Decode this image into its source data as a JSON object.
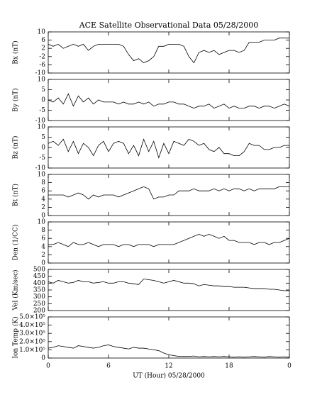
{
  "chart_data": [
    {
      "type": "line",
      "title": "ACE Satellite Observational Data   05/28/2000",
      "ylabel": "Bx (nT)",
      "color": "#000000",
      "x": [
        0,
        0.5,
        1,
        1.5,
        2,
        2.5,
        3,
        3.5,
        4,
        4.5,
        5,
        5.5,
        6,
        6.5,
        7,
        7.5,
        8,
        8.5,
        9,
        9.5,
        10,
        10.5,
        11,
        11.5,
        12,
        12.5,
        13,
        13.5,
        14,
        14.5,
        15,
        15.5,
        16,
        16.5,
        17,
        17.5,
        18,
        18.5,
        19,
        19.5,
        20,
        20.5,
        21,
        21.5,
        22,
        22.5,
        23,
        23.5,
        24
      ],
      "values": [
        4,
        3,
        4,
        2,
        3,
        4,
        3,
        4,
        1,
        3,
        4,
        4,
        4,
        4,
        4,
        3,
        -1,
        -4,
        -3,
        -5,
        -4,
        -2,
        3,
        3,
        4,
        4,
        4,
        3,
        -2,
        -5,
        0,
        1,
        0,
        1,
        -1,
        0,
        1,
        1,
        0,
        1,
        5,
        5,
        5,
        6,
        6,
        6,
        7,
        7,
        7
      ],
      "ylim": [
        -10,
        10
      ],
      "yticks": [
        -10,
        -6,
        -2,
        2,
        6,
        10
      ]
    },
    {
      "type": "line",
      "ylabel": "By (nT)",
      "color": "#000000",
      "x": [
        0,
        0.5,
        1,
        1.5,
        2,
        2.5,
        3,
        3.5,
        4,
        4.5,
        5,
        5.5,
        6,
        6.5,
        7,
        7.5,
        8,
        8.5,
        9,
        9.5,
        10,
        10.5,
        11,
        11.5,
        12,
        12.5,
        13,
        13.5,
        14,
        14.5,
        15,
        15.5,
        16,
        16.5,
        17,
        17.5,
        18,
        18.5,
        19,
        19.5,
        20,
        20.5,
        21,
        21.5,
        22,
        22.5,
        23,
        23.5,
        24
      ],
      "values": [
        0,
        -1,
        1,
        -2,
        3,
        -3,
        2,
        -1,
        1,
        -2,
        0,
        -1,
        -1,
        -1,
        -2,
        -1,
        -2,
        -2,
        -1,
        -2,
        -1,
        -3,
        -2,
        -2,
        -1,
        -1,
        -2,
        -2,
        -3,
        -4,
        -3,
        -3,
        -2,
        -4,
        -3,
        -2,
        -4,
        -3,
        -4,
        -4,
        -3,
        -3,
        -4,
        -3,
        -3,
        -4,
        -3,
        -2,
        -3
      ],
      "ylim": [
        -10,
        10
      ],
      "yticks": [
        -10,
        -5,
        0,
        5,
        10
      ]
    },
    {
      "type": "line",
      "ylabel": "Bz (nT)",
      "color": "#000000",
      "x": [
        0,
        0.5,
        1,
        1.5,
        2,
        2.5,
        3,
        3.5,
        4,
        4.5,
        5,
        5.5,
        6,
        6.5,
        7,
        7.5,
        8,
        8.5,
        9,
        9.5,
        10,
        10.5,
        11,
        11.5,
        12,
        12.5,
        13,
        13.5,
        14,
        14.5,
        15,
        15.5,
        16,
        16.5,
        17,
        17.5,
        18,
        18.5,
        19,
        19.5,
        20,
        20.5,
        21,
        21.5,
        22,
        22.5,
        23,
        23.5,
        24
      ],
      "values": [
        2,
        3,
        1,
        4,
        -2,
        3,
        -3,
        2,
        0,
        -4,
        1,
        3,
        -2,
        2,
        3,
        2,
        -3,
        1,
        -4,
        4,
        -2,
        3,
        -5,
        2,
        -3,
        3,
        2,
        1,
        4,
        3,
        1,
        2,
        -1,
        -2,
        0,
        -3,
        -3,
        -4,
        -4,
        -2,
        2,
        1,
        1,
        -1,
        -1,
        0,
        0,
        1,
        1
      ],
      "ylim": [
        -10,
        10
      ],
      "yticks": [
        -10,
        -5,
        0,
        5,
        10
      ]
    },
    {
      "type": "line",
      "ylabel": "Bt (nT)",
      "color": "#000000",
      "x": [
        0,
        0.5,
        1,
        1.5,
        2,
        2.5,
        3,
        3.5,
        4,
        4.5,
        5,
        5.5,
        6,
        6.5,
        7,
        7.5,
        8,
        8.5,
        9,
        9.5,
        10,
        10.5,
        11,
        11.5,
        12,
        12.5,
        13,
        13.5,
        14,
        14.5,
        15,
        15.5,
        16,
        16.5,
        17,
        17.5,
        18,
        18.5,
        19,
        19.5,
        20,
        20.5,
        21,
        21.5,
        22,
        22.5,
        23,
        23.5,
        24
      ],
      "values": [
        5,
        5,
        5,
        5,
        4.5,
        5,
        5.5,
        5,
        4,
        5,
        4.5,
        5,
        5,
        5,
        4.5,
        5,
        5.5,
        6,
        6.5,
        7,
        6.5,
        4,
        4.5,
        4.5,
        5,
        5,
        6,
        6,
        6,
        6.5,
        6,
        6,
        6,
        6.5,
        6,
        6.5,
        6,
        6.5,
        6.5,
        6,
        6.5,
        6,
        6.5,
        6.5,
        6.5,
        6.5,
        7,
        7,
        7
      ],
      "ylim": [
        0,
        10
      ],
      "yticks": [
        0,
        2,
        4,
        6,
        8,
        10
      ]
    },
    {
      "type": "line",
      "ylabel": "Den (1/CC)",
      "color": "#000000",
      "x": [
        0,
        0.5,
        1,
        1.5,
        2,
        2.5,
        3,
        3.5,
        4,
        4.5,
        5,
        5.5,
        6,
        6.5,
        7,
        7.5,
        8,
        8.5,
        9,
        9.5,
        10,
        10.5,
        11,
        11.5,
        12,
        12.5,
        13,
        13.5,
        14,
        14.5,
        15,
        15.5,
        16,
        16.5,
        17,
        17.5,
        18,
        18.5,
        19,
        19.5,
        20,
        20.5,
        21,
        21.5,
        22,
        22.5,
        23,
        23.5,
        24
      ],
      "values": [
        4.5,
        4.5,
        5,
        4.5,
        4,
        5,
        4.5,
        4.5,
        5,
        4.5,
        4,
        4.5,
        4.5,
        4.5,
        4,
        4.5,
        4.5,
        4,
        4.5,
        4.5,
        4.5,
        4,
        4.5,
        4.5,
        4.5,
        4.5,
        5,
        5.5,
        6,
        6.5,
        7,
        6.5,
        7,
        6.5,
        6,
        6.5,
        5.5,
        5.5,
        5,
        5,
        5,
        4.5,
        5,
        5,
        4.5,
        5,
        5,
        5.5,
        6
      ],
      "ylim": [
        0,
        10
      ],
      "yticks": [
        0,
        2,
        4,
        6,
        8,
        10
      ]
    },
    {
      "type": "line",
      "ylabel": "Vel (Km/sec)",
      "color": "#000000",
      "x": [
        0,
        0.5,
        1,
        1.5,
        2,
        2.5,
        3,
        3.5,
        4,
        4.5,
        5,
        5.5,
        6,
        6.5,
        7,
        7.5,
        8,
        8.5,
        9,
        9.5,
        10,
        10.5,
        11,
        11.5,
        12,
        12.5,
        13,
        13.5,
        14,
        14.5,
        15,
        15.5,
        16,
        16.5,
        17,
        17.5,
        18,
        18.5,
        19,
        19.5,
        20,
        20.5,
        21,
        21.5,
        22,
        22.5,
        23,
        23.5,
        24
      ],
      "values": [
        410,
        400,
        420,
        410,
        400,
        405,
        420,
        410,
        410,
        400,
        405,
        410,
        400,
        400,
        410,
        410,
        400,
        395,
        390,
        430,
        425,
        420,
        410,
        400,
        410,
        420,
        410,
        400,
        400,
        395,
        380,
        390,
        385,
        380,
        380,
        375,
        375,
        370,
        370,
        370,
        365,
        360,
        360,
        360,
        355,
        355,
        350,
        345,
        345
      ],
      "ylim": [
        200,
        500
      ],
      "yticks": [
        200,
        250,
        300,
        350,
        400,
        450,
        500
      ]
    },
    {
      "type": "line",
      "ylabel": "Ion Temp (K)",
      "xlabel": "UT (Hour)   05/28/2000",
      "color": "#000000",
      "x": [
        0,
        0.5,
        1,
        1.5,
        2,
        2.5,
        3,
        3.5,
        4,
        4.5,
        5,
        5.5,
        6,
        6.5,
        7,
        7.5,
        8,
        8.5,
        9,
        9.5,
        10,
        10.5,
        11,
        11.5,
        12,
        12.5,
        13,
        13.5,
        14,
        14.5,
        15,
        15.5,
        16,
        16.5,
        17,
        17.5,
        18,
        18.5,
        19,
        19.5,
        20,
        20.5,
        21,
        21.5,
        22,
        22.5,
        23,
        23.5,
        24
      ],
      "values": [
        120000,
        130000,
        150000,
        140000,
        130000,
        120000,
        150000,
        140000,
        130000,
        120000,
        130000,
        150000,
        160000,
        140000,
        130000,
        120000,
        110000,
        130000,
        120000,
        120000,
        110000,
        100000,
        90000,
        60000,
        40000,
        30000,
        20000,
        20000,
        20000,
        25000,
        15000,
        20000,
        15000,
        20000,
        15000,
        20000,
        15000,
        10000,
        15000,
        10000,
        15000,
        20000,
        15000,
        10000,
        20000,
        15000,
        10000,
        15000,
        10000
      ],
      "ylim": [
        0,
        500000
      ],
      "yticks": [
        0,
        {
          "value": 100000,
          "label": "1.0×10⁵"
        },
        {
          "value": 200000,
          "label": "2.0×10⁵"
        },
        {
          "value": 300000,
          "label": "3.0×10⁵"
        },
        {
          "value": 400000,
          "label": "4.0×10⁵"
        },
        {
          "value": 500000,
          "label": "5.0×10⁵"
        }
      ],
      "xlim": [
        0,
        24
      ],
      "xticks": [
        0,
        6,
        12,
        18,
        {
          "value": 24,
          "label": "0"
        }
      ]
    }
  ]
}
